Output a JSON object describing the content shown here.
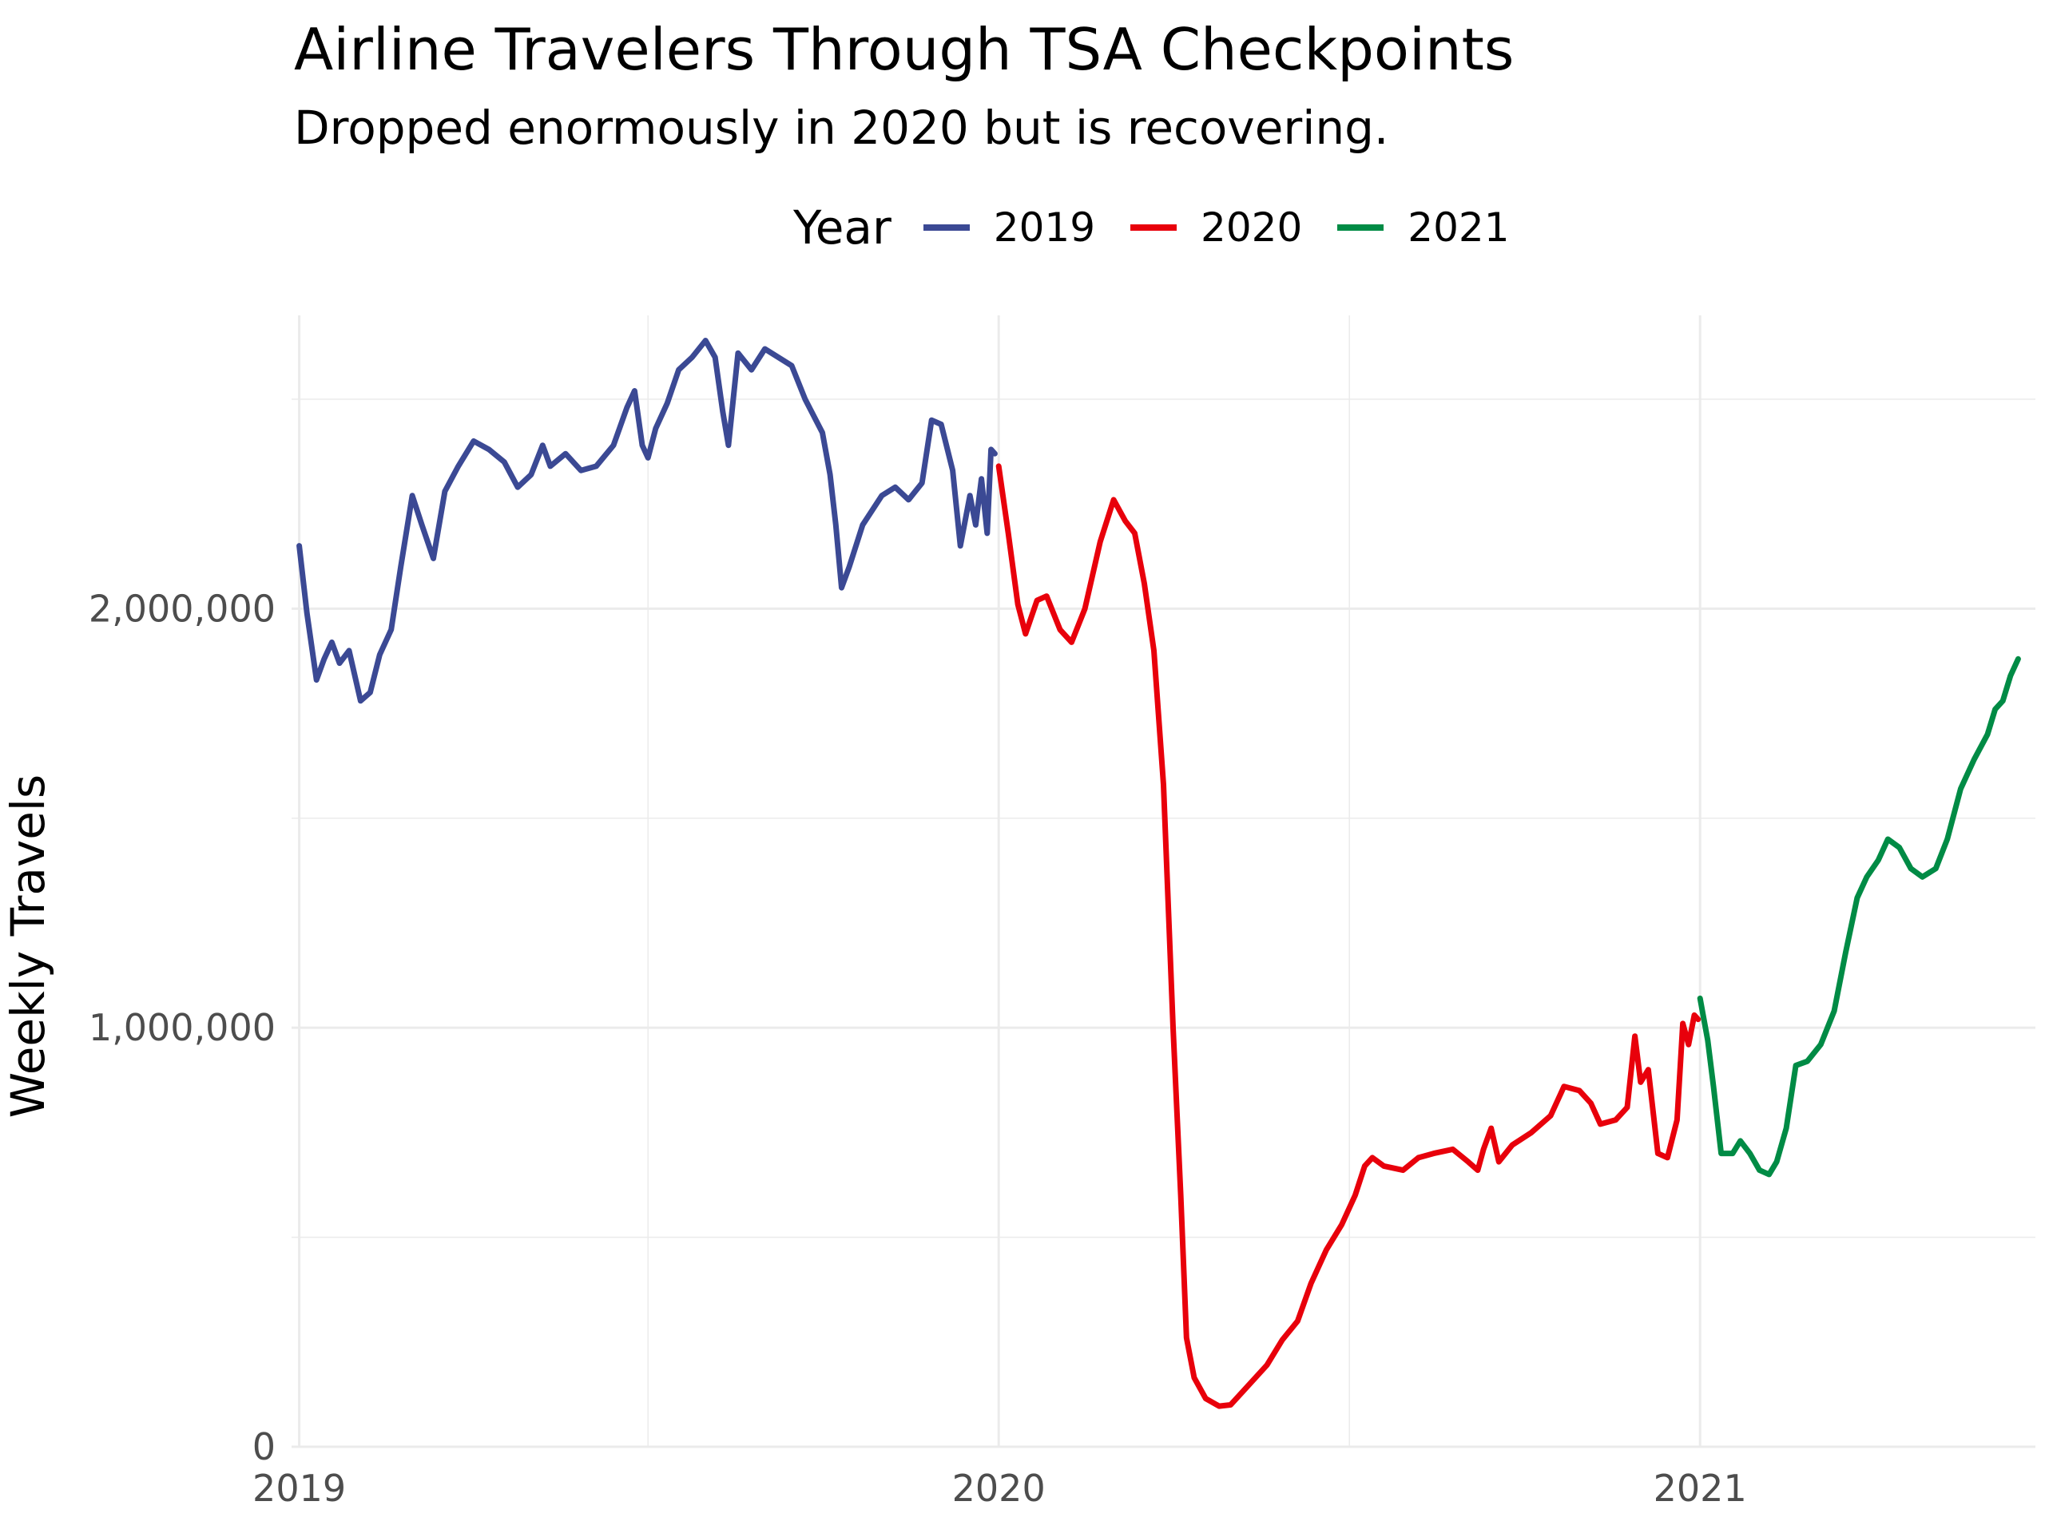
{
  "chart_data": {
    "type": "line",
    "title": "Airline Travelers Through TSA Checkpoints",
    "subtitle": "Dropped enormously in 2020 but is recovering.",
    "xlabel": "",
    "ylabel": "Weekly Travels",
    "legend": {
      "title": "Year",
      "position": "top"
    },
    "grid": true,
    "x_ticks": [
      "2019",
      "2020",
      "2021"
    ],
    "y_ticks": [
      0,
      1000000,
      2000000
    ],
    "y_tick_labels": [
      "0",
      "1,000,000",
      "2,000,000"
    ],
    "ylim": [
      0,
      2700000
    ],
    "xlim": [
      "2018-12-28",
      "2021-06-25"
    ],
    "series": [
      {
        "name": "2019",
        "color": "#3b4994",
        "points": [
          [
            "2019-01-01",
            2150000
          ],
          [
            "2019-01-05",
            1990000
          ],
          [
            "2019-01-10",
            1830000
          ],
          [
            "2019-01-14",
            1880000
          ],
          [
            "2019-01-18",
            1920000
          ],
          [
            "2019-01-22",
            1870000
          ],
          [
            "2019-01-27",
            1900000
          ],
          [
            "2019-02-02",
            1780000
          ],
          [
            "2019-02-07",
            1800000
          ],
          [
            "2019-02-12",
            1890000
          ],
          [
            "2019-02-18",
            1950000
          ],
          [
            "2019-02-23",
            2100000
          ],
          [
            "2019-03-01",
            2270000
          ],
          [
            "2019-03-06",
            2200000
          ],
          [
            "2019-03-12",
            2120000
          ],
          [
            "2019-03-18",
            2280000
          ],
          [
            "2019-03-25",
            2340000
          ],
          [
            "2019-04-02",
            2400000
          ],
          [
            "2019-04-10",
            2380000
          ],
          [
            "2019-04-18",
            2350000
          ],
          [
            "2019-04-25",
            2290000
          ],
          [
            "2019-05-02",
            2320000
          ],
          [
            "2019-05-08",
            2390000
          ],
          [
            "2019-05-12",
            2340000
          ],
          [
            "2019-05-20",
            2370000
          ],
          [
            "2019-05-28",
            2330000
          ],
          [
            "2019-06-05",
            2340000
          ],
          [
            "2019-06-14",
            2390000
          ],
          [
            "2019-06-21",
            2480000
          ],
          [
            "2019-06-25",
            2520000
          ],
          [
            "2019-06-29",
            2390000
          ],
          [
            "2019-07-02",
            2360000
          ],
          [
            "2019-07-06",
            2430000
          ],
          [
            "2019-07-12",
            2490000
          ],
          [
            "2019-07-18",
            2570000
          ],
          [
            "2019-07-25",
            2600000
          ],
          [
            "2019-08-01",
            2640000
          ],
          [
            "2019-08-06",
            2600000
          ],
          [
            "2019-08-10",
            2470000
          ],
          [
            "2019-08-13",
            2390000
          ],
          [
            "2019-08-18",
            2610000
          ],
          [
            "2019-08-25",
            2570000
          ],
          [
            "2019-09-01",
            2620000
          ],
          [
            "2019-09-08",
            2600000
          ],
          [
            "2019-09-15",
            2580000
          ],
          [
            "2019-09-22",
            2500000
          ],
          [
            "2019-10-01",
            2420000
          ],
          [
            "2019-10-05",
            2320000
          ],
          [
            "2019-10-08",
            2200000
          ],
          [
            "2019-10-11",
            2050000
          ],
          [
            "2019-10-15",
            2100000
          ],
          [
            "2019-10-22",
            2200000
          ],
          [
            "2019-11-01",
            2270000
          ],
          [
            "2019-11-08",
            2290000
          ],
          [
            "2019-11-15",
            2260000
          ],
          [
            "2019-11-22",
            2300000
          ],
          [
            "2019-11-27",
            2450000
          ],
          [
            "2019-12-02",
            2440000
          ],
          [
            "2019-12-08",
            2330000
          ],
          [
            "2019-12-12",
            2150000
          ],
          [
            "2019-12-17",
            2270000
          ],
          [
            "2019-12-20",
            2200000
          ],
          [
            "2019-12-23",
            2310000
          ],
          [
            "2019-12-26",
            2180000
          ],
          [
            "2019-12-28",
            2380000
          ],
          [
            "2019-12-30",
            2370000
          ]
        ]
      },
      {
        "name": "2020",
        "color": "#e8000b",
        "points": [
          [
            "2020-01-01",
            2340000
          ],
          [
            "2020-01-06",
            2180000
          ],
          [
            "2020-01-11",
            2010000
          ],
          [
            "2020-01-15",
            1940000
          ],
          [
            "2020-01-21",
            2020000
          ],
          [
            "2020-01-26",
            2030000
          ],
          [
            "2020-02-02",
            1950000
          ],
          [
            "2020-02-08",
            1920000
          ],
          [
            "2020-02-15",
            2000000
          ],
          [
            "2020-02-23",
            2160000
          ],
          [
            "2020-03-01",
            2260000
          ],
          [
            "2020-03-07",
            2210000
          ],
          [
            "2020-03-12",
            2180000
          ],
          [
            "2020-03-17",
            2060000
          ],
          [
            "2020-03-22",
            1900000
          ],
          [
            "2020-03-27",
            1580000
          ],
          [
            "2020-04-01",
            1000000
          ],
          [
            "2020-04-05",
            600000
          ],
          [
            "2020-04-08",
            260000
          ],
          [
            "2020-04-12",
            165000
          ],
          [
            "2020-04-18",
            115000
          ],
          [
            "2020-04-25",
            97000
          ],
          [
            "2020-05-01",
            100000
          ],
          [
            "2020-05-10",
            145000
          ],
          [
            "2020-05-20",
            195000
          ],
          [
            "2020-05-28",
            255000
          ],
          [
            "2020-06-05",
            300000
          ],
          [
            "2020-06-12",
            390000
          ],
          [
            "2020-06-20",
            470000
          ],
          [
            "2020-06-28",
            530000
          ],
          [
            "2020-07-05",
            600000
          ],
          [
            "2020-07-10",
            670000
          ],
          [
            "2020-07-14",
            690000
          ],
          [
            "2020-07-20",
            670000
          ],
          [
            "2020-07-30",
            660000
          ],
          [
            "2020-08-07",
            690000
          ],
          [
            "2020-08-15",
            700000
          ],
          [
            "2020-08-25",
            710000
          ],
          [
            "2020-09-02",
            680000
          ],
          [
            "2020-09-07",
            660000
          ],
          [
            "2020-09-10",
            710000
          ],
          [
            "2020-09-14",
            760000
          ],
          [
            "2020-09-18",
            680000
          ],
          [
            "2020-09-25",
            720000
          ],
          [
            "2020-10-05",
            750000
          ],
          [
            "2020-10-15",
            790000
          ],
          [
            "2020-10-22",
            860000
          ],
          [
            "2020-10-30",
            850000
          ],
          [
            "2020-11-05",
            820000
          ],
          [
            "2020-11-10",
            770000
          ],
          [
            "2020-11-18",
            780000
          ],
          [
            "2020-11-24",
            810000
          ],
          [
            "2020-11-28",
            980000
          ],
          [
            "2020-12-01",
            870000
          ],
          [
            "2020-12-05",
            900000
          ],
          [
            "2020-12-10",
            700000
          ],
          [
            "2020-12-15",
            690000
          ],
          [
            "2020-12-20",
            780000
          ],
          [
            "2020-12-23",
            1010000
          ],
          [
            "2020-12-26",
            960000
          ],
          [
            "2020-12-29",
            1030000
          ],
          [
            "2020-12-31",
            1020000
          ]
        ]
      },
      {
        "name": "2021",
        "color": "#008b45",
        "points": [
          [
            "2021-01-01",
            1070000
          ],
          [
            "2021-01-05",
            970000
          ],
          [
            "2021-01-08",
            860000
          ],
          [
            "2021-01-12",
            700000
          ],
          [
            "2021-01-18",
            700000
          ],
          [
            "2021-01-22",
            730000
          ],
          [
            "2021-01-27",
            700000
          ],
          [
            "2021-02-01",
            660000
          ],
          [
            "2021-02-06",
            650000
          ],
          [
            "2021-02-10",
            680000
          ],
          [
            "2021-02-15",
            760000
          ],
          [
            "2021-02-20",
            910000
          ],
          [
            "2021-02-26",
            920000
          ],
          [
            "2021-03-05",
            960000
          ],
          [
            "2021-03-12",
            1040000
          ],
          [
            "2021-03-18",
            1180000
          ],
          [
            "2021-03-24",
            1310000
          ],
          [
            "2021-03-29",
            1360000
          ],
          [
            "2021-04-04",
            1400000
          ],
          [
            "2021-04-09",
            1450000
          ],
          [
            "2021-04-15",
            1430000
          ],
          [
            "2021-04-21",
            1380000
          ],
          [
            "2021-04-27",
            1360000
          ],
          [
            "2021-05-04",
            1380000
          ],
          [
            "2021-05-10",
            1450000
          ],
          [
            "2021-05-17",
            1570000
          ],
          [
            "2021-05-24",
            1640000
          ],
          [
            "2021-05-31",
            1700000
          ],
          [
            "2021-06-04",
            1760000
          ],
          [
            "2021-06-08",
            1780000
          ],
          [
            "2021-06-12",
            1840000
          ],
          [
            "2021-06-16",
            1880000
          ]
        ]
      }
    ]
  }
}
